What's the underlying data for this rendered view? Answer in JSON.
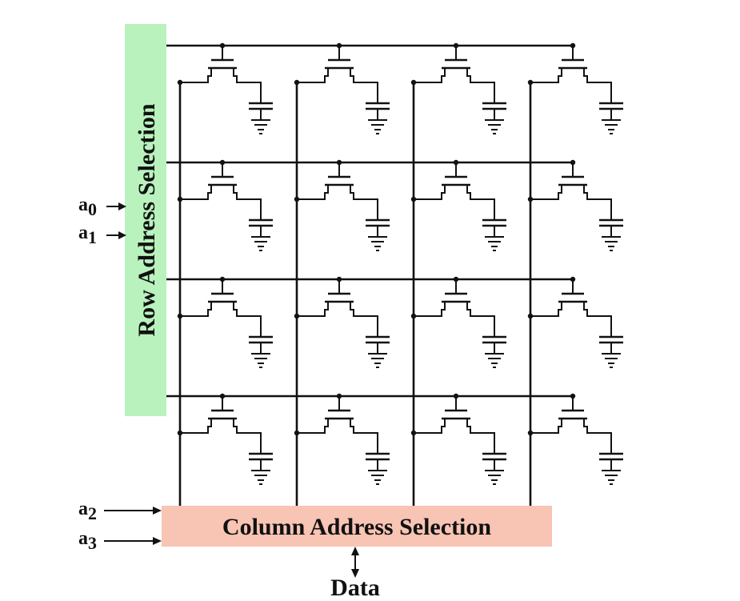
{
  "row_block": {
    "label": "Row Address Selection",
    "color": "#b9f2bd"
  },
  "column_block": {
    "label": "Column Address Selection",
    "color": "#f8c4b4"
  },
  "data_label": "Data",
  "row_inputs": [
    {
      "base": "a",
      "sub": "0"
    },
    {
      "base": "a",
      "sub": "1"
    }
  ],
  "column_inputs": [
    {
      "base": "a",
      "sub": "2"
    },
    {
      "base": "a",
      "sub": "3"
    }
  ],
  "array": {
    "rows": 4,
    "columns": 4
  }
}
